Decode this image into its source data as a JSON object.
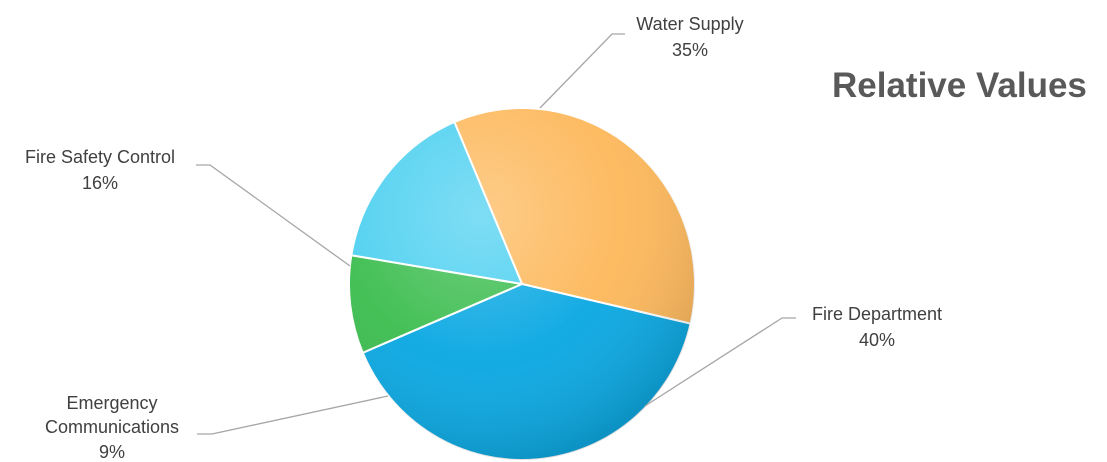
{
  "chart_data": {
    "type": "pie",
    "title": "Relative Values",
    "slices": [
      {
        "label": "Water Supply",
        "value": 35,
        "value_label": "35%",
        "color": "#FDB85B"
      },
      {
        "label": "Fire Department",
        "value": 40,
        "value_label": "40%",
        "color": "#0AA8E2"
      },
      {
        "label": "Emergency Communications",
        "value": 9,
        "value_label": "9%",
        "color": "#3CBD4F"
      },
      {
        "label": "Fire Safety Control",
        "value": 16,
        "value_label": "16%",
        "color": "#4DD0F0"
      }
    ],
    "legend": "none"
  }
}
